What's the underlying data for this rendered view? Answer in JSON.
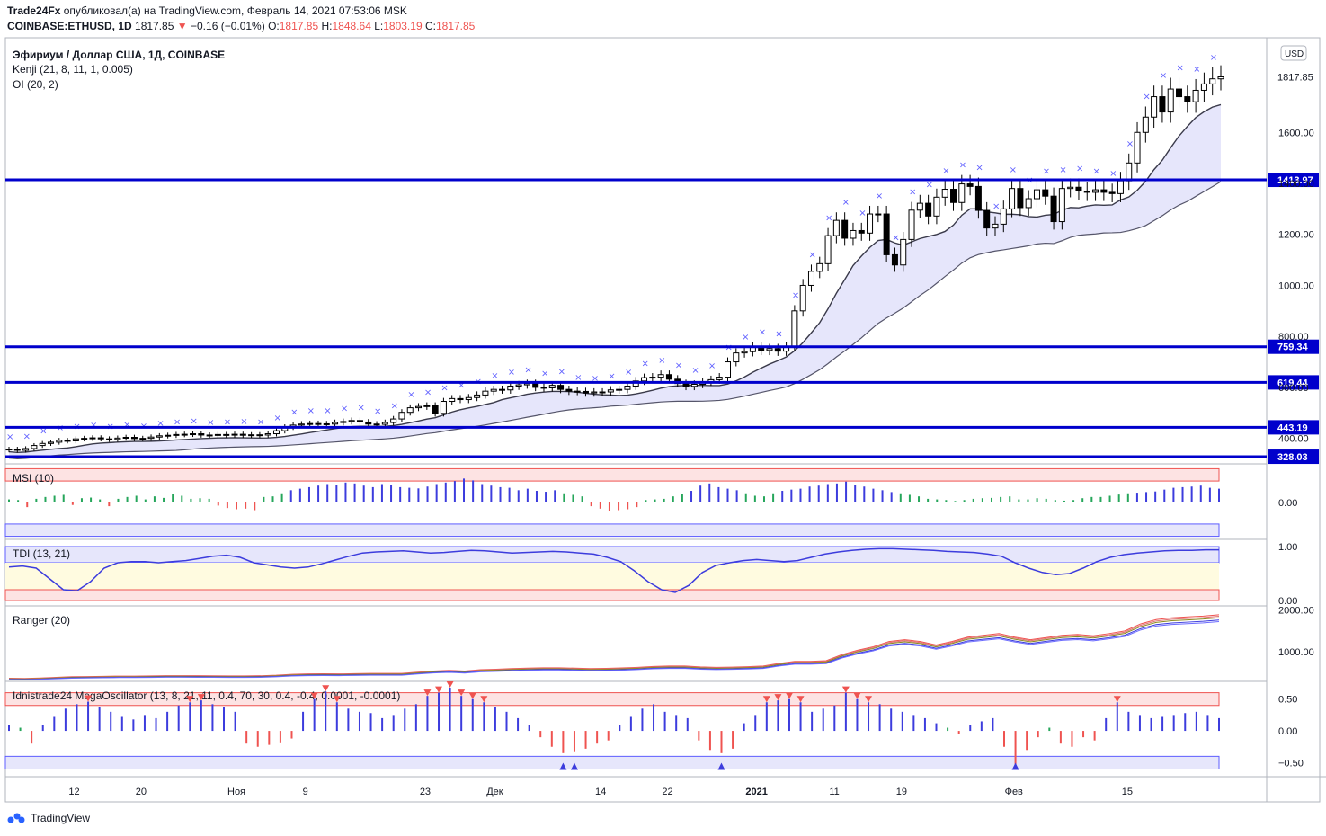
{
  "header": {
    "line1_author": "Trade24Fx",
    "line1_rest": "опубликовал(а) на TradingView.com, Февраль 14, 2021 07:53:06 MSK",
    "symbol": "COINBASE:ETHUSD, 1D",
    "last": "1817.85",
    "change_arrow": "▼",
    "change": "−0.16 (−0.01%)",
    "o_label": "O:",
    "o": "1817.85",
    "h_label": "H:",
    "h": "1848.64",
    "l_label": "L:",
    "l": "1803.19",
    "c_label": "C:",
    "c": "1817.85"
  },
  "legend": {
    "title": "Эфириум / Доллар США, 1Д, COINBASE",
    "kenji": "Kenji (21, 8, 11, 1, 0.005)",
    "oi": "OI (20, 2)"
  },
  "currency_badge": "USD",
  "colors": {
    "accent_blue": "#0000cc",
    "cross_blue": "#5d5dff",
    "signal_red": "#ef5350",
    "band_fill": "#e6e6fb",
    "osc_blue": "#3c3cdd",
    "pos_green": "#26a65b"
  },
  "footer": {
    "brand": "TradingView"
  },
  "chart_data": [
    {
      "type": "candlestick",
      "title": "Эфириум / Доллар США, 1Д, COINBASE",
      "ylim": [
        300,
        1950
      ],
      "y_ticks": [
        400,
        600,
        800,
        1000,
        1200,
        1400,
        1600
      ],
      "y_tick_labels": [
        "400.00",
        "600.00",
        "800.00",
        "1000.00",
        "1200.00",
        "1400.00",
        "1600.00"
      ],
      "price_label": "1817.85",
      "x_tick_labels": [
        {
          "i": 8,
          "t": "12"
        },
        {
          "i": 16,
          "t": "20"
        },
        {
          "i": 27,
          "t": "Ноя"
        },
        {
          "i": 36,
          "t": "9"
        },
        {
          "i": 50,
          "t": "23"
        },
        {
          "i": 58,
          "t": "Дек"
        },
        {
          "i": 71,
          "t": "14"
        },
        {
          "i": 79,
          "t": "22"
        },
        {
          "i": 89,
          "t": "2021"
        },
        {
          "i": 99,
          "t": "11"
        },
        {
          "i": 107,
          "t": "19"
        },
        {
          "i": 120,
          "t": "Фев"
        },
        {
          "i": 134,
          "t": "15"
        }
      ],
      "horizontal_levels": [
        {
          "value": 1413.97,
          "label": "1413.97"
        },
        {
          "value": 759.34,
          "label": "759.34"
        },
        {
          "value": 619.44,
          "label": "619.44"
        },
        {
          "value": 443.19,
          "label": "443.19"
        },
        {
          "value": 328.03,
          "label": "328.03"
        }
      ],
      "close": [
        358,
        353,
        360,
        372,
        380,
        385,
        392,
        390,
        398,
        400,
        402,
        398,
        396,
        401,
        404,
        399,
        400,
        405,
        410,
        412,
        415,
        416,
        418,
        413,
        412,
        415,
        413,
        416,
        412,
        414,
        413,
        418,
        430,
        444,
        452,
        456,
        458,
        457,
        456,
        462,
        466,
        470,
        464,
        456,
        455,
        462,
        476,
        502,
        520,
        525,
        528,
        498,
        545,
        556,
        552,
        560,
        570,
        585,
        592,
        590,
        605,
        610,
        615,
        600,
        598,
        608,
        592,
        585,
        584,
        578,
        582,
        582,
        590,
        592,
        605,
        625,
        638,
        640,
        650,
        632,
        615,
        604,
        612,
        622,
        630,
        640,
        700,
        735,
        740,
        758,
        745,
        752,
        742,
        760,
        900,
        1000,
        1055,
        1085,
        1195,
        1255,
        1185,
        1215,
        1205,
        1280,
        1280,
        1120,
        1080,
        1180,
        1295,
        1322,
        1272,
        1346,
        1377,
        1325,
        1398,
        1388,
        1294,
        1225,
        1240,
        1300,
        1380,
        1305,
        1340,
        1375,
        1350,
        1250,
        1380,
        1385,
        1370,
        1365,
        1375,
        1365,
        1360,
        1410,
        1480,
        1600,
        1660,
        1740,
        1680,
        1770,
        1740,
        1720,
        1765,
        1790,
        1810,
        1817.85
      ],
      "series": [
        {
          "name": "MSI (10)",
          "range": [
            -1.2,
            1.2
          ],
          "values": [
            0.1,
            0.08,
            -0.15,
            0.12,
            0.18,
            0.22,
            0.25,
            -0.08,
            0.14,
            0.16,
            0.1,
            -0.12,
            0.12,
            0.18,
            0.22,
            0.1,
            0.2,
            0.15,
            0.28,
            0.22,
            0.12,
            0.14,
            0.12,
            -0.1,
            -0.18,
            -0.22,
            -0.2,
            -0.25,
            0.18,
            0.2,
            0.3,
            0.4,
            0.45,
            0.5,
            0.55,
            0.6,
            0.58,
            0.65,
            0.62,
            0.55,
            0.5,
            0.6,
            0.56,
            0.5,
            0.48,
            0.46,
            0.52,
            0.6,
            0.65,
            0.7,
            0.78,
            0.72,
            0.6,
            0.55,
            0.5,
            0.48,
            0.4,
            0.45,
            0.38,
            0.35,
            0.4,
            0.3,
            0.25,
            0.2,
            -0.12,
            -0.2,
            -0.28,
            -0.25,
            -0.22,
            -0.15,
            0.08,
            0.1,
            0.12,
            0.2,
            0.28,
            0.38,
            0.55,
            0.62,
            0.5,
            0.45,
            0.4,
            0.3,
            0.22,
            0.2,
            0.3,
            0.38,
            0.42,
            0.45,
            0.52,
            0.55,
            0.6,
            0.62,
            0.68,
            0.58,
            0.52,
            0.45,
            0.4,
            0.34,
            0.3,
            0.25,
            0.2,
            0.12,
            0.1,
            0.08,
            0.05,
            0.08,
            0.12,
            0.14,
            0.15,
            0.18,
            0.2,
            0.1,
            0.1,
            0.14,
            0.12,
            0.08,
            0.06,
            0.08,
            0.14,
            0.18,
            0.18,
            0.22,
            0.26,
            0.3,
            0.32,
            0.34,
            0.36,
            0.42,
            0.48,
            0.5,
            0.52,
            0.55,
            0.48,
            0.45
          ]
        },
        {
          "name": "TDI (13, 21)",
          "range": [
            -0.1,
            1.1
          ],
          "values": [
            0.62,
            0.64,
            0.6,
            0.4,
            0.2,
            0.18,
            0.35,
            0.6,
            0.7,
            0.72,
            0.72,
            0.7,
            0.72,
            0.74,
            0.78,
            0.82,
            0.84,
            0.8,
            0.7,
            0.66,
            0.62,
            0.6,
            0.62,
            0.68,
            0.75,
            0.82,
            0.88,
            0.9,
            0.91,
            0.92,
            0.9,
            0.88,
            0.89,
            0.91,
            0.93,
            0.92,
            0.9,
            0.88,
            0.89,
            0.9,
            0.91,
            0.9,
            0.88,
            0.86,
            0.8,
            0.72,
            0.55,
            0.35,
            0.2,
            0.15,
            0.28,
            0.52,
            0.65,
            0.7,
            0.74,
            0.76,
            0.74,
            0.72,
            0.74,
            0.8,
            0.86,
            0.9,
            0.93,
            0.95,
            0.96,
            0.96,
            0.95,
            0.94,
            0.93,
            0.91,
            0.9,
            0.89,
            0.86,
            0.82,
            0.7,
            0.6,
            0.52,
            0.48,
            0.5,
            0.6,
            0.72,
            0.8,
            0.85,
            0.88,
            0.9,
            0.92,
            0.93,
            0.93,
            0.94,
            0.94
          ]
        },
        {
          "name": "Ranger (20)",
          "range": [
            300,
            2050
          ],
          "values": [
            360,
            355,
            365,
            380,
            395,
            400,
            405,
            410,
            410,
            415,
            420,
            420,
            418,
            416,
            414,
            414,
            418,
            430,
            450,
            460,
            462,
            460,
            465,
            470,
            470,
            470,
            500,
            525,
            540,
            525,
            555,
            565,
            580,
            590,
            600,
            600,
            590,
            580,
            585,
            595,
            610,
            630,
            640,
            640,
            620,
            610,
            615,
            625,
            640,
            700,
            745,
            745,
            760,
            900,
            1000,
            1080,
            1200,
            1240,
            1200,
            1120,
            1200,
            1300,
            1340,
            1380,
            1300,
            1240,
            1290,
            1340,
            1360,
            1330,
            1380,
            1440,
            1600,
            1700,
            1740,
            1760,
            1780,
            1810
          ]
        },
        {
          "name": "Idnistrade24 MegaOscillator (13, 8, 21, 11, 0.4, 70, 30, 0.4, -0.4, 0.0001, -0.0001)",
          "range": [
            -0.72,
            0.75
          ],
          "values": [
            0.1,
            0.05,
            -0.2,
            0.1,
            0.22,
            0.35,
            0.42,
            0.46,
            0.38,
            0.3,
            0.22,
            0.18,
            0.25,
            0.2,
            0.3,
            0.4,
            0.45,
            0.48,
            0.42,
            0.38,
            0.3,
            -0.2,
            -0.25,
            -0.22,
            -0.18,
            -0.12,
            0.3,
            0.5,
            0.62,
            0.45,
            0.35,
            0.3,
            0.28,
            0.2,
            0.25,
            0.35,
            0.42,
            0.55,
            0.6,
            0.68,
            0.55,
            0.5,
            0.45,
            0.38,
            0.3,
            0.2,
            0.1,
            -0.1,
            -0.25,
            -0.35,
            -0.32,
            -0.28,
            -0.2,
            -0.15,
            0.1,
            0.22,
            0.35,
            0.42,
            0.3,
            0.25,
            0.2,
            -0.15,
            -0.3,
            -0.35,
            -0.28,
            0.12,
            0.25,
            0.45,
            0.48,
            0.5,
            0.45,
            0.3,
            0.35,
            0.4,
            0.6,
            0.5,
            0.45,
            0.42,
            0.35,
            0.3,
            0.25,
            0.2,
            0.12,
            0.05,
            -0.05,
            0.1,
            0.15,
            0.2,
            -0.25,
            -0.55,
            -0.3,
            -0.1,
            0.05,
            -0.2,
            -0.25,
            -0.1,
            -0.15,
            0.2,
            0.45,
            0.3,
            0.25,
            0.2,
            0.22,
            0.25,
            0.28,
            0.3,
            0.25,
            0.2
          ]
        }
      ]
    }
  ]
}
